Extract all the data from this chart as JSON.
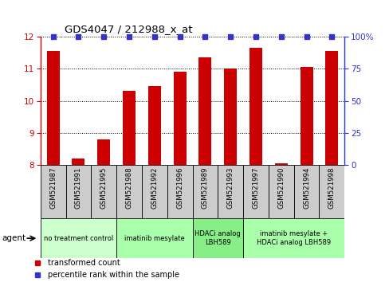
{
  "title": "GDS4047 / 212988_x_at",
  "samples": [
    "GSM521987",
    "GSM521991",
    "GSM521995",
    "GSM521988",
    "GSM521992",
    "GSM521996",
    "GSM521989",
    "GSM521993",
    "GSM521997",
    "GSM521990",
    "GSM521994",
    "GSM521998"
  ],
  "bar_values": [
    11.55,
    8.2,
    8.8,
    10.3,
    10.45,
    10.9,
    11.35,
    11.0,
    11.65,
    8.05,
    11.05,
    11.55
  ],
  "percentile_values": [
    100,
    100,
    100,
    100,
    100,
    100,
    100,
    100,
    100,
    100,
    100,
    100
  ],
  "bar_color": "#cc0000",
  "percentile_color": "#3333cc",
  "ylim_left": [
    8,
    12
  ],
  "ylim_right": [
    0,
    100
  ],
  "yticks_left": [
    8,
    9,
    10,
    11,
    12
  ],
  "yticks_right": [
    0,
    25,
    50,
    75,
    100
  ],
  "agent_groups": [
    {
      "label": "no treatment control",
      "start": 0,
      "end": 3,
      "color": "#ccffcc"
    },
    {
      "label": "imatinib mesylate",
      "start": 3,
      "end": 6,
      "color": "#aaffaa"
    },
    {
      "label": "HDACi analog\nLBH589",
      "start": 6,
      "end": 8,
      "color": "#88ee88"
    },
    {
      "label": "imatinib mesylate +\nHDACi analog LBH589",
      "start": 8,
      "end": 12,
      "color": "#aaffaa"
    }
  ],
  "legend_items": [
    {
      "label": "transformed count",
      "color": "#cc0000",
      "marker": "s"
    },
    {
      "label": "percentile rank within the sample",
      "color": "#3333cc",
      "marker": "s"
    }
  ],
  "left_axis_color": "#cc0000",
  "right_axis_color": "#3333cc",
  "sample_box_color": "#cccccc",
  "agent_label": "agent",
  "bar_width": 0.5,
  "figsize": [
    4.83,
    3.54
  ],
  "dpi": 100
}
